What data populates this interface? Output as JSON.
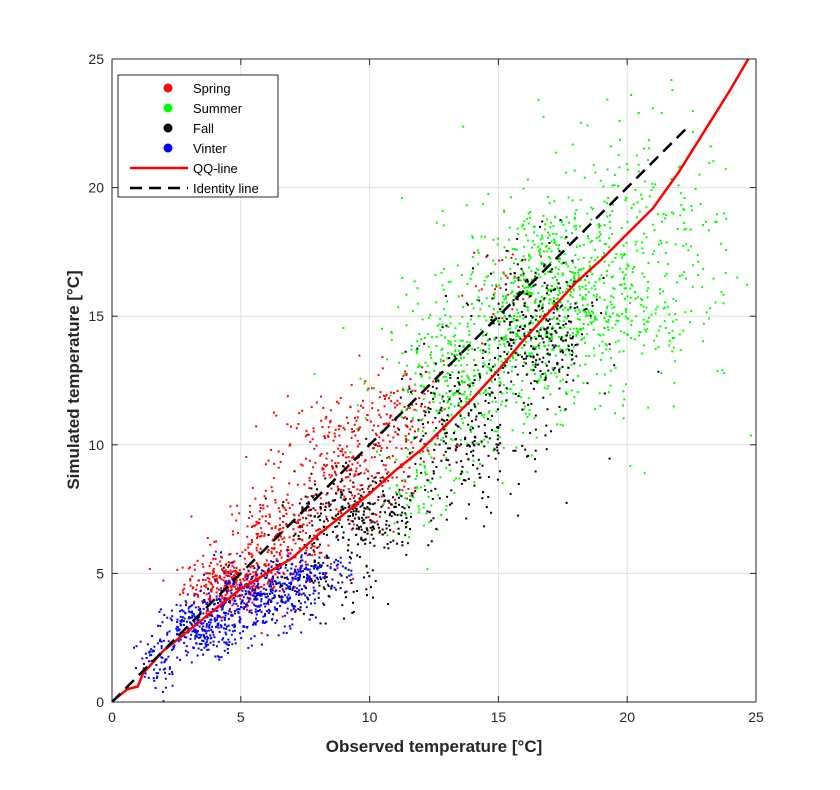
{
  "chart_data": {
    "type": "scatter",
    "xlabel": "Observed temperature [°C]",
    "ylabel": "Simulated temperature [°C]",
    "xlim": [
      0,
      25
    ],
    "ylim": [
      0,
      25
    ],
    "xticks": [
      "0",
      "5",
      "10",
      "15",
      "20",
      "25"
    ],
    "yticks": [
      "0",
      "5",
      "10",
      "15",
      "20",
      "25"
    ],
    "grid": true,
    "legend_position": "top-left",
    "series": [
      {
        "name": "Spring",
        "kind": "points",
        "color": "#ff0000",
        "clusters": [
          {
            "center": [
              4.6,
              4.6
            ],
            "spread": [
              0.9,
              0.5
            ],
            "count": 320
          },
          {
            "center": [
              6.5,
              6.3
            ],
            "spread": [
              1.2,
              0.9
            ],
            "count": 260
          },
          {
            "center": [
              9.0,
              9.2
            ],
            "spread": [
              1.3,
              1.4
            ],
            "count": 300
          },
          {
            "center": [
              11.2,
              11.0
            ],
            "spread": [
              1.0,
              1.1
            ],
            "count": 140
          },
          {
            "center": [
              15.6,
              16.2
            ],
            "spread": [
              0.9,
              0.8
            ],
            "count": 40
          }
        ]
      },
      {
        "name": "Summer",
        "kind": "points",
        "color": "#00ff00",
        "clusters": [
          {
            "center": [
              13.5,
              12.5
            ],
            "spread": [
              1.5,
              1.6
            ],
            "count": 380
          },
          {
            "center": [
              17.0,
              15.6
            ],
            "spread": [
              1.7,
              1.9
            ],
            "count": 720
          },
          {
            "center": [
              20.5,
              17.5
            ],
            "spread": [
              1.9,
              2.8
            ],
            "count": 320
          },
          {
            "center": [
              11.8,
              8.2
            ],
            "spread": [
              0.7,
              1.0
            ],
            "count": 70
          }
        ]
      },
      {
        "name": "Fall",
        "kind": "points",
        "color": "#000000",
        "clusters": [
          {
            "center": [
              9.5,
              7.2
            ],
            "spread": [
              1.2,
              0.8
            ],
            "count": 300
          },
          {
            "center": [
              13.5,
              10.5
            ],
            "spread": [
              1.3,
              1.6
            ],
            "count": 260
          },
          {
            "center": [
              16.5,
              14.3
            ],
            "spread": [
              1.1,
              1.6
            ],
            "count": 320
          },
          {
            "center": [
              7.5,
              4.5
            ],
            "spread": [
              1.4,
              0.6
            ],
            "count": 110
          }
        ]
      },
      {
        "name": "Vinter",
        "kind": "points",
        "color": "#0000ff",
        "clusters": [
          {
            "center": [
              3.6,
              2.9
            ],
            "spread": [
              0.8,
              0.5
            ],
            "count": 300
          },
          {
            "center": [
              5.6,
              4.0
            ],
            "spread": [
              1.1,
              0.6
            ],
            "count": 320
          },
          {
            "center": [
              7.6,
              5.0
            ],
            "spread": [
              0.8,
              0.35
            ],
            "count": 140
          },
          {
            "center": [
              1.8,
              1.6
            ],
            "spread": [
              0.5,
              0.6
            ],
            "count": 70
          }
        ]
      },
      {
        "name": "QQ-line",
        "kind": "line",
        "color": "#ff0000",
        "dash": "",
        "points": [
          [
            0.1,
            0.1
          ],
          [
            0.6,
            0.5
          ],
          [
            1.0,
            0.6
          ],
          [
            1.2,
            1.1
          ],
          [
            2.0,
            2.0
          ],
          [
            3.0,
            2.8
          ],
          [
            4.0,
            3.6
          ],
          [
            5.0,
            4.4
          ],
          [
            6.0,
            5.0
          ],
          [
            7.0,
            5.6
          ],
          [
            8.0,
            6.5
          ],
          [
            9.0,
            7.3
          ],
          [
            10.0,
            8.1
          ],
          [
            11.0,
            9.0
          ],
          [
            12.0,
            9.8
          ],
          [
            13.0,
            10.8
          ],
          [
            14.0,
            11.8
          ],
          [
            15.0,
            12.9
          ],
          [
            16.0,
            14.1
          ],
          [
            17.0,
            15.2
          ],
          [
            18.0,
            16.3
          ],
          [
            19.0,
            17.2
          ],
          [
            20.0,
            18.2
          ],
          [
            21.0,
            19.2
          ],
          [
            22.0,
            20.6
          ],
          [
            23.0,
            22.2
          ],
          [
            24.0,
            23.8
          ],
          [
            24.7,
            25.0
          ]
        ]
      },
      {
        "name": "Identity line",
        "kind": "line",
        "color": "#000000",
        "dash": "12,7",
        "points": [
          [
            0,
            0
          ],
          [
            22.3,
            22.3
          ]
        ]
      }
    ]
  }
}
